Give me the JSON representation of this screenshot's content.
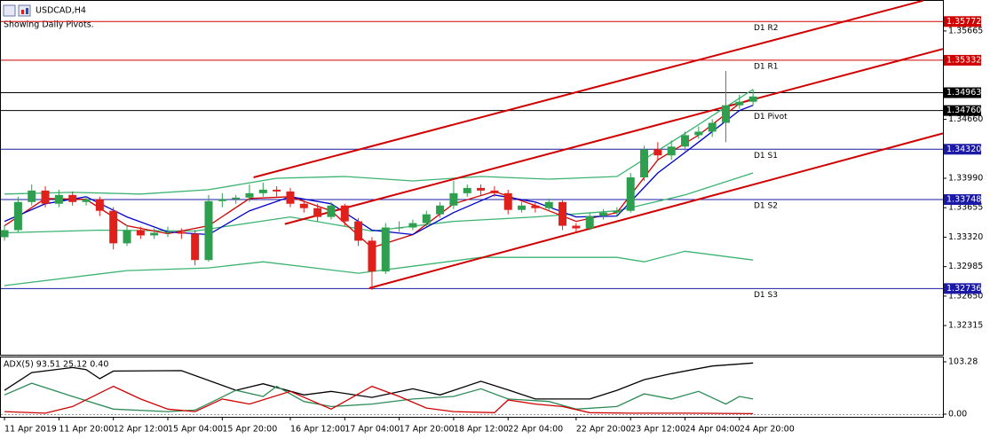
{
  "chart_data": [
    {
      "type": "candlestick",
      "title": "USDCAD,H4",
      "subtitle": "Showing Daily Pivots.",
      "up_color": "#2e9e4f",
      "down_color": "#e0201b",
      "xlim": [
        -0.33,
        68.95
      ],
      "ylim": [
        1.31983,
        1.36007
      ],
      "xticks": [
        {
          "value": 0,
          "label": "11 Apr 2019"
        },
        {
          "value": 4,
          "label": "11 Apr 20:00"
        },
        {
          "value": 8,
          "label": "12 Apr 12:00"
        },
        {
          "value": 12,
          "label": "15 Apr 04:00"
        },
        {
          "value": 16,
          "label": "15 Apr 20:00"
        },
        {
          "value": 21,
          "label": "16 Apr 12:00"
        },
        {
          "value": 25,
          "label": "17 Apr 04:00"
        },
        {
          "value": 29,
          "label": "17 Apr 20:00"
        },
        {
          "value": 33,
          "label": "18 Apr 12:00"
        },
        {
          "value": 37,
          "label": "22 Apr 04:00"
        },
        {
          "value": 42,
          "label": "22 Apr 20:00"
        },
        {
          "value": 46,
          "label": "23 Apr 12:00"
        },
        {
          "value": 50,
          "label": "24 Apr 04:00"
        },
        {
          "value": 54,
          "label": "24 Apr 20:00"
        }
      ],
      "yticks": [
        1.35665,
        {
          "value": 1.3466,
          "label": "1.34660"
        },
        {
          "value": 1.3399,
          "label": "1.33990"
        },
        1.33655,
        {
          "value": 1.3332,
          "label": "1.33320"
        },
        1.32985,
        {
          "value": 1.3265,
          "label": "1.32650"
        },
        1.32315
      ],
      "levels": [
        {
          "name": "D1 R2",
          "value": 1.35772,
          "color": "#d00000"
        },
        {
          "name": "D1 R1",
          "value": 1.35332,
          "color": "#d00000"
        },
        {
          "value": 1.34963,
          "color": "#000000"
        },
        {
          "name": "D1 Pivot",
          "value": 1.3476,
          "label": "1.34760",
          "color": "#000000"
        },
        {
          "name": "D1 S1",
          "value": 1.3432,
          "label": "1.34320",
          "color": "#1a1aa6"
        },
        {
          "name": "D1 S2",
          "value": 1.33748,
          "color": "#1a1aa6"
        },
        {
          "name": "D1 S3",
          "value": 1.32736,
          "color": "#1a1aa6"
        }
      ],
      "open": [
        1.3332,
        1.334,
        1.3372,
        1.3385,
        1.337,
        1.338,
        1.3372,
        1.3375,
        1.3362,
        1.3325,
        1.334,
        1.3334,
        1.3337,
        1.3338,
        1.3336,
        1.3306,
        1.3373,
        1.3375,
        1.3377,
        1.3382,
        1.3386,
        1.3384,
        1.337,
        1.3365,
        1.3355,
        1.3368,
        1.335,
        1.3328,
        1.3293,
        1.3343,
        1.3343,
        1.3348,
        1.3358,
        1.3368,
        1.3382,
        1.3388,
        1.3385,
        1.3382,
        1.3363,
        1.3368,
        1.3365,
        1.3372,
        1.3345,
        1.3342,
        1.3356,
        1.336,
        1.3362,
        1.34,
        1.3432,
        1.3425,
        1.3435,
        1.3448,
        1.3452,
        1.3462,
        1.3482,
        1.3486
      ],
      "high": [
        1.3346,
        1.3378,
        1.3392,
        1.339,
        1.3386,
        1.3384,
        1.3379,
        1.3378,
        1.3366,
        1.3346,
        1.3344,
        1.3342,
        1.3344,
        1.3342,
        1.334,
        1.338,
        1.3382,
        1.338,
        1.3392,
        1.3394,
        1.339,
        1.3388,
        1.3374,
        1.337,
        1.3372,
        1.337,
        1.3354,
        1.3332,
        1.3348,
        1.335,
        1.3352,
        1.3362,
        1.3372,
        1.3396,
        1.3392,
        1.3392,
        1.339,
        1.3386,
        1.3372,
        1.3371,
        1.3376,
        1.3374,
        1.3348,
        1.336,
        1.3364,
        1.3366,
        1.3405,
        1.3436,
        1.344,
        1.3442,
        1.3452,
        1.3458,
        1.3466,
        1.3521,
        1.3494,
        1.35
      ],
      "low": [
        1.3328,
        1.3338,
        1.3368,
        1.3366,
        1.3366,
        1.3368,
        1.3368,
        1.3356,
        1.3318,
        1.3322,
        1.333,
        1.333,
        1.3332,
        1.333,
        1.33,
        1.3304,
        1.3366,
        1.337,
        1.3372,
        1.3378,
        1.3378,
        1.3366,
        1.336,
        1.335,
        1.3352,
        1.3345,
        1.3322,
        1.3272,
        1.329,
        1.3338,
        1.334,
        1.3344,
        1.3354,
        1.3364,
        1.3378,
        1.338,
        1.3378,
        1.3358,
        1.336,
        1.336,
        1.3362,
        1.334,
        1.3338,
        1.334,
        1.3352,
        1.3356,
        1.336,
        1.3396,
        1.342,
        1.342,
        1.343,
        1.3444,
        1.3446,
        1.344,
        1.3478,
        1.3482
      ],
      "close": [
        1.334,
        1.3372,
        1.3385,
        1.337,
        1.338,
        1.3372,
        1.3375,
        1.3362,
        1.3325,
        1.334,
        1.3334,
        1.3337,
        1.3338,
        1.3336,
        1.3306,
        1.3373,
        1.3375,
        1.3377,
        1.3382,
        1.3386,
        1.3384,
        1.337,
        1.3365,
        1.3355,
        1.3368,
        1.335,
        1.3328,
        1.3293,
        1.3343,
        1.3343,
        1.3348,
        1.3358,
        1.3368,
        1.3382,
        1.3388,
        1.3385,
        1.3382,
        1.3363,
        1.3368,
        1.3365,
        1.3372,
        1.3345,
        1.3342,
        1.3356,
        1.336,
        1.3362,
        1.34,
        1.3432,
        1.3425,
        1.3435,
        1.3448,
        1.3452,
        1.3462,
        1.3482,
        1.3486,
        1.3492
      ],
      "series": [
        {
          "color": "#3cb371",
          "x": [
            0,
            5,
            10,
            15,
            20,
            25,
            30,
            35,
            40,
            45,
            50,
            55
          ],
          "values": [
            1.3381,
            1.3383,
            1.3381,
            1.3386,
            1.3399,
            1.3401,
            1.3396,
            1.3401,
            1.3398,
            1.3401,
            1.345,
            1.35
          ]
        },
        {
          "color": "#3cb371",
          "x": [
            0,
            7,
            14,
            21,
            27,
            33,
            39,
            45,
            50,
            55
          ],
          "values": [
            1.3337,
            1.334,
            1.3339,
            1.3355,
            1.3339,
            1.335,
            1.3355,
            1.3362,
            1.338,
            1.3405
          ]
        },
        {
          "color": "#3cb371",
          "x": [
            0,
            9,
            15,
            19,
            26,
            30,
            35,
            45,
            47,
            50,
            55
          ],
          "values": [
            1.3277,
            1.3294,
            1.3297,
            1.3304,
            1.3291,
            1.3299,
            1.3309,
            1.3309,
            1.3304,
            1.3316,
            1.3306
          ]
        },
        {
          "color": "#d00000",
          "x": [
            0,
            3,
            6,
            9,
            12,
            15,
            18,
            21,
            24,
            27,
            30,
            33,
            36,
            39,
            42,
            45,
            48,
            51,
            54,
            55
          ],
          "values": [
            1.3345,
            1.3376,
            1.3375,
            1.3345,
            1.3336,
            1.3345,
            1.3376,
            1.3378,
            1.3362,
            1.332,
            1.3335,
            1.337,
            1.3384,
            1.3368,
            1.335,
            1.336,
            1.342,
            1.3448,
            1.3484,
            1.349
          ]
        },
        {
          "color": "#0000c8",
          "x": [
            0,
            3,
            6,
            9,
            12,
            15,
            18,
            21,
            24,
            27,
            30,
            33,
            36,
            39,
            42,
            45,
            48,
            51,
            54,
            55
          ],
          "values": [
            1.335,
            1.337,
            1.3378,
            1.3355,
            1.3338,
            1.3335,
            1.3362,
            1.3378,
            1.337,
            1.334,
            1.3335,
            1.336,
            1.338,
            1.3372,
            1.3355,
            1.3356,
            1.3405,
            1.344,
            1.3476,
            1.3482
          ]
        },
        {
          "color": "#d00000",
          "x": [
            18.3,
            67.5
          ],
          "values": [
            1.34,
            1.3601
          ]
        },
        {
          "color": "#d00000",
          "x": [
            20.6,
            68.95
          ],
          "values": [
            1.3347,
            1.3546
          ]
        },
        {
          "color": "#d00000",
          "x": [
            26.8,
            68.95
          ],
          "values": [
            1.3274,
            1.345
          ]
        }
      ]
    },
    {
      "type": "line",
      "title": "ADX(5) 93.51 25.12 0.40",
      "xlim": [
        -0.33,
        68.95
      ],
      "ylim": [
        -5.25,
        112
      ],
      "yticks": [
        103.28,
        {
          "value": 0,
          "label": "0.00"
        }
      ],
      "series": [
        {
          "color": "#000000",
          "x": [
            0,
            2,
            5,
            6,
            7,
            8,
            13,
            17,
            19,
            22,
            24,
            27,
            30,
            32,
            35,
            37,
            39,
            43,
            45,
            47,
            49,
            52,
            55
          ],
          "values": [
            47,
            82,
            92,
            88,
            70,
            85,
            86,
            47,
            60,
            38,
            45,
            33,
            50,
            38,
            65,
            48,
            30,
            30,
            47,
            68,
            80,
            95,
            101
          ]
        },
        {
          "color": "#2e8b57",
          "x": [
            0,
            2,
            5,
            8,
            12,
            14,
            17,
            19,
            20,
            22,
            24,
            27,
            30,
            33,
            35,
            37,
            40,
            42,
            45,
            47,
            49,
            51,
            53,
            54,
            55
          ],
          "values": [
            38,
            61,
            35,
            10,
            5,
            8,
            47,
            35,
            55,
            25,
            15,
            20,
            30,
            35,
            50,
            30,
            25,
            10,
            15,
            40,
            30,
            45,
            20,
            35,
            30
          ]
        },
        {
          "color": "#d00000",
          "x": [
            0,
            3,
            5,
            8,
            10,
            12,
            14,
            16,
            18,
            21,
            24,
            27,
            29,
            31,
            33,
            36,
            37,
            39,
            41,
            43,
            46,
            50,
            55
          ],
          "values": [
            5,
            2,
            15,
            55,
            30,
            10,
            5,
            30,
            20,
            45,
            10,
            55,
            35,
            12,
            5,
            3,
            28,
            20,
            15,
            3,
            2,
            2,
            1
          ]
        }
      ]
    }
  ]
}
